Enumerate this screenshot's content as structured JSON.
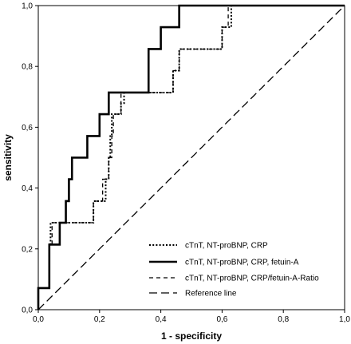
{
  "chart_data": {
    "type": "line",
    "xlabel": "1 - specificity",
    "ylabel": "sensitivity",
    "xlim": [
      0,
      1
    ],
    "ylim": [
      0,
      1
    ],
    "xticks": [
      "0,0",
      "0,2",
      "0,4",
      "0,6",
      "0,8",
      "1,0"
    ],
    "yticks": [
      "0,0",
      "0,2",
      "0,4",
      "0,6",
      "0,8",
      "1,0"
    ],
    "grid": false,
    "legend_position": "bottom-right",
    "series": [
      {
        "name": "cTnT, NT-proBNP, CRP",
        "style": "dotted",
        "color": "#000000",
        "points": [
          [
            0,
            0
          ],
          [
            0,
            0.071
          ],
          [
            0.036,
            0.071
          ],
          [
            0.036,
            0.214
          ],
          [
            0.04,
            0.214
          ],
          [
            0.04,
            0.286
          ],
          [
            0.18,
            0.286
          ],
          [
            0.18,
            0.357
          ],
          [
            0.22,
            0.357
          ],
          [
            0.22,
            0.429
          ],
          [
            0.23,
            0.429
          ],
          [
            0.23,
            0.5
          ],
          [
            0.235,
            0.5
          ],
          [
            0.235,
            0.571
          ],
          [
            0.24,
            0.571
          ],
          [
            0.24,
            0.643
          ],
          [
            0.27,
            0.643
          ],
          [
            0.27,
            0.679
          ],
          [
            0.28,
            0.679
          ],
          [
            0.28,
            0.714
          ],
          [
            0.44,
            0.714
          ],
          [
            0.44,
            0.786
          ],
          [
            0.46,
            0.786
          ],
          [
            0.46,
            0.857
          ],
          [
            0.6,
            0.857
          ],
          [
            0.6,
            0.929
          ],
          [
            0.63,
            0.929
          ],
          [
            0.63,
            1
          ],
          [
            1,
            1
          ]
        ]
      },
      {
        "name": "cTnT, NT-proBNP, CRP, fetuin-A",
        "style": "solid",
        "color": "#000000",
        "points": [
          [
            0,
            0
          ],
          [
            0,
            0.071
          ],
          [
            0.036,
            0.071
          ],
          [
            0.036,
            0.214
          ],
          [
            0.07,
            0.214
          ],
          [
            0.07,
            0.286
          ],
          [
            0.09,
            0.286
          ],
          [
            0.09,
            0.357
          ],
          [
            0.1,
            0.357
          ],
          [
            0.1,
            0.429
          ],
          [
            0.11,
            0.429
          ],
          [
            0.11,
            0.5
          ],
          [
            0.16,
            0.5
          ],
          [
            0.16,
            0.571
          ],
          [
            0.2,
            0.571
          ],
          [
            0.2,
            0.643
          ],
          [
            0.23,
            0.643
          ],
          [
            0.23,
            0.714
          ],
          [
            0.36,
            0.714
          ],
          [
            0.36,
            0.857
          ],
          [
            0.4,
            0.857
          ],
          [
            0.4,
            0.929
          ],
          [
            0.46,
            0.929
          ],
          [
            0.46,
            1
          ],
          [
            1,
            1
          ]
        ]
      },
      {
        "name": "cTnT, NT-proBNP, CRP/fetuin-A-Ratio",
        "style": "dashed",
        "color": "#000000",
        "points": [
          [
            0,
            0
          ],
          [
            0,
            0.071
          ],
          [
            0.036,
            0.071
          ],
          [
            0.036,
            0.214
          ],
          [
            0.045,
            0.214
          ],
          [
            0.045,
            0.286
          ],
          [
            0.18,
            0.286
          ],
          [
            0.18,
            0.357
          ],
          [
            0.21,
            0.357
          ],
          [
            0.21,
            0.429
          ],
          [
            0.23,
            0.429
          ],
          [
            0.23,
            0.5
          ],
          [
            0.24,
            0.5
          ],
          [
            0.24,
            0.571
          ],
          [
            0.245,
            0.571
          ],
          [
            0.245,
            0.643
          ],
          [
            0.27,
            0.643
          ],
          [
            0.27,
            0.714
          ],
          [
            0.44,
            0.714
          ],
          [
            0.44,
            0.786
          ],
          [
            0.46,
            0.786
          ],
          [
            0.46,
            0.857
          ],
          [
            0.6,
            0.857
          ],
          [
            0.6,
            0.929
          ],
          [
            0.62,
            0.929
          ],
          [
            0.62,
            1
          ],
          [
            1,
            1
          ]
        ]
      },
      {
        "name": "Reference line",
        "style": "longdash",
        "color": "#000000",
        "points": [
          [
            0,
            0
          ],
          [
            1,
            1
          ]
        ]
      }
    ]
  }
}
